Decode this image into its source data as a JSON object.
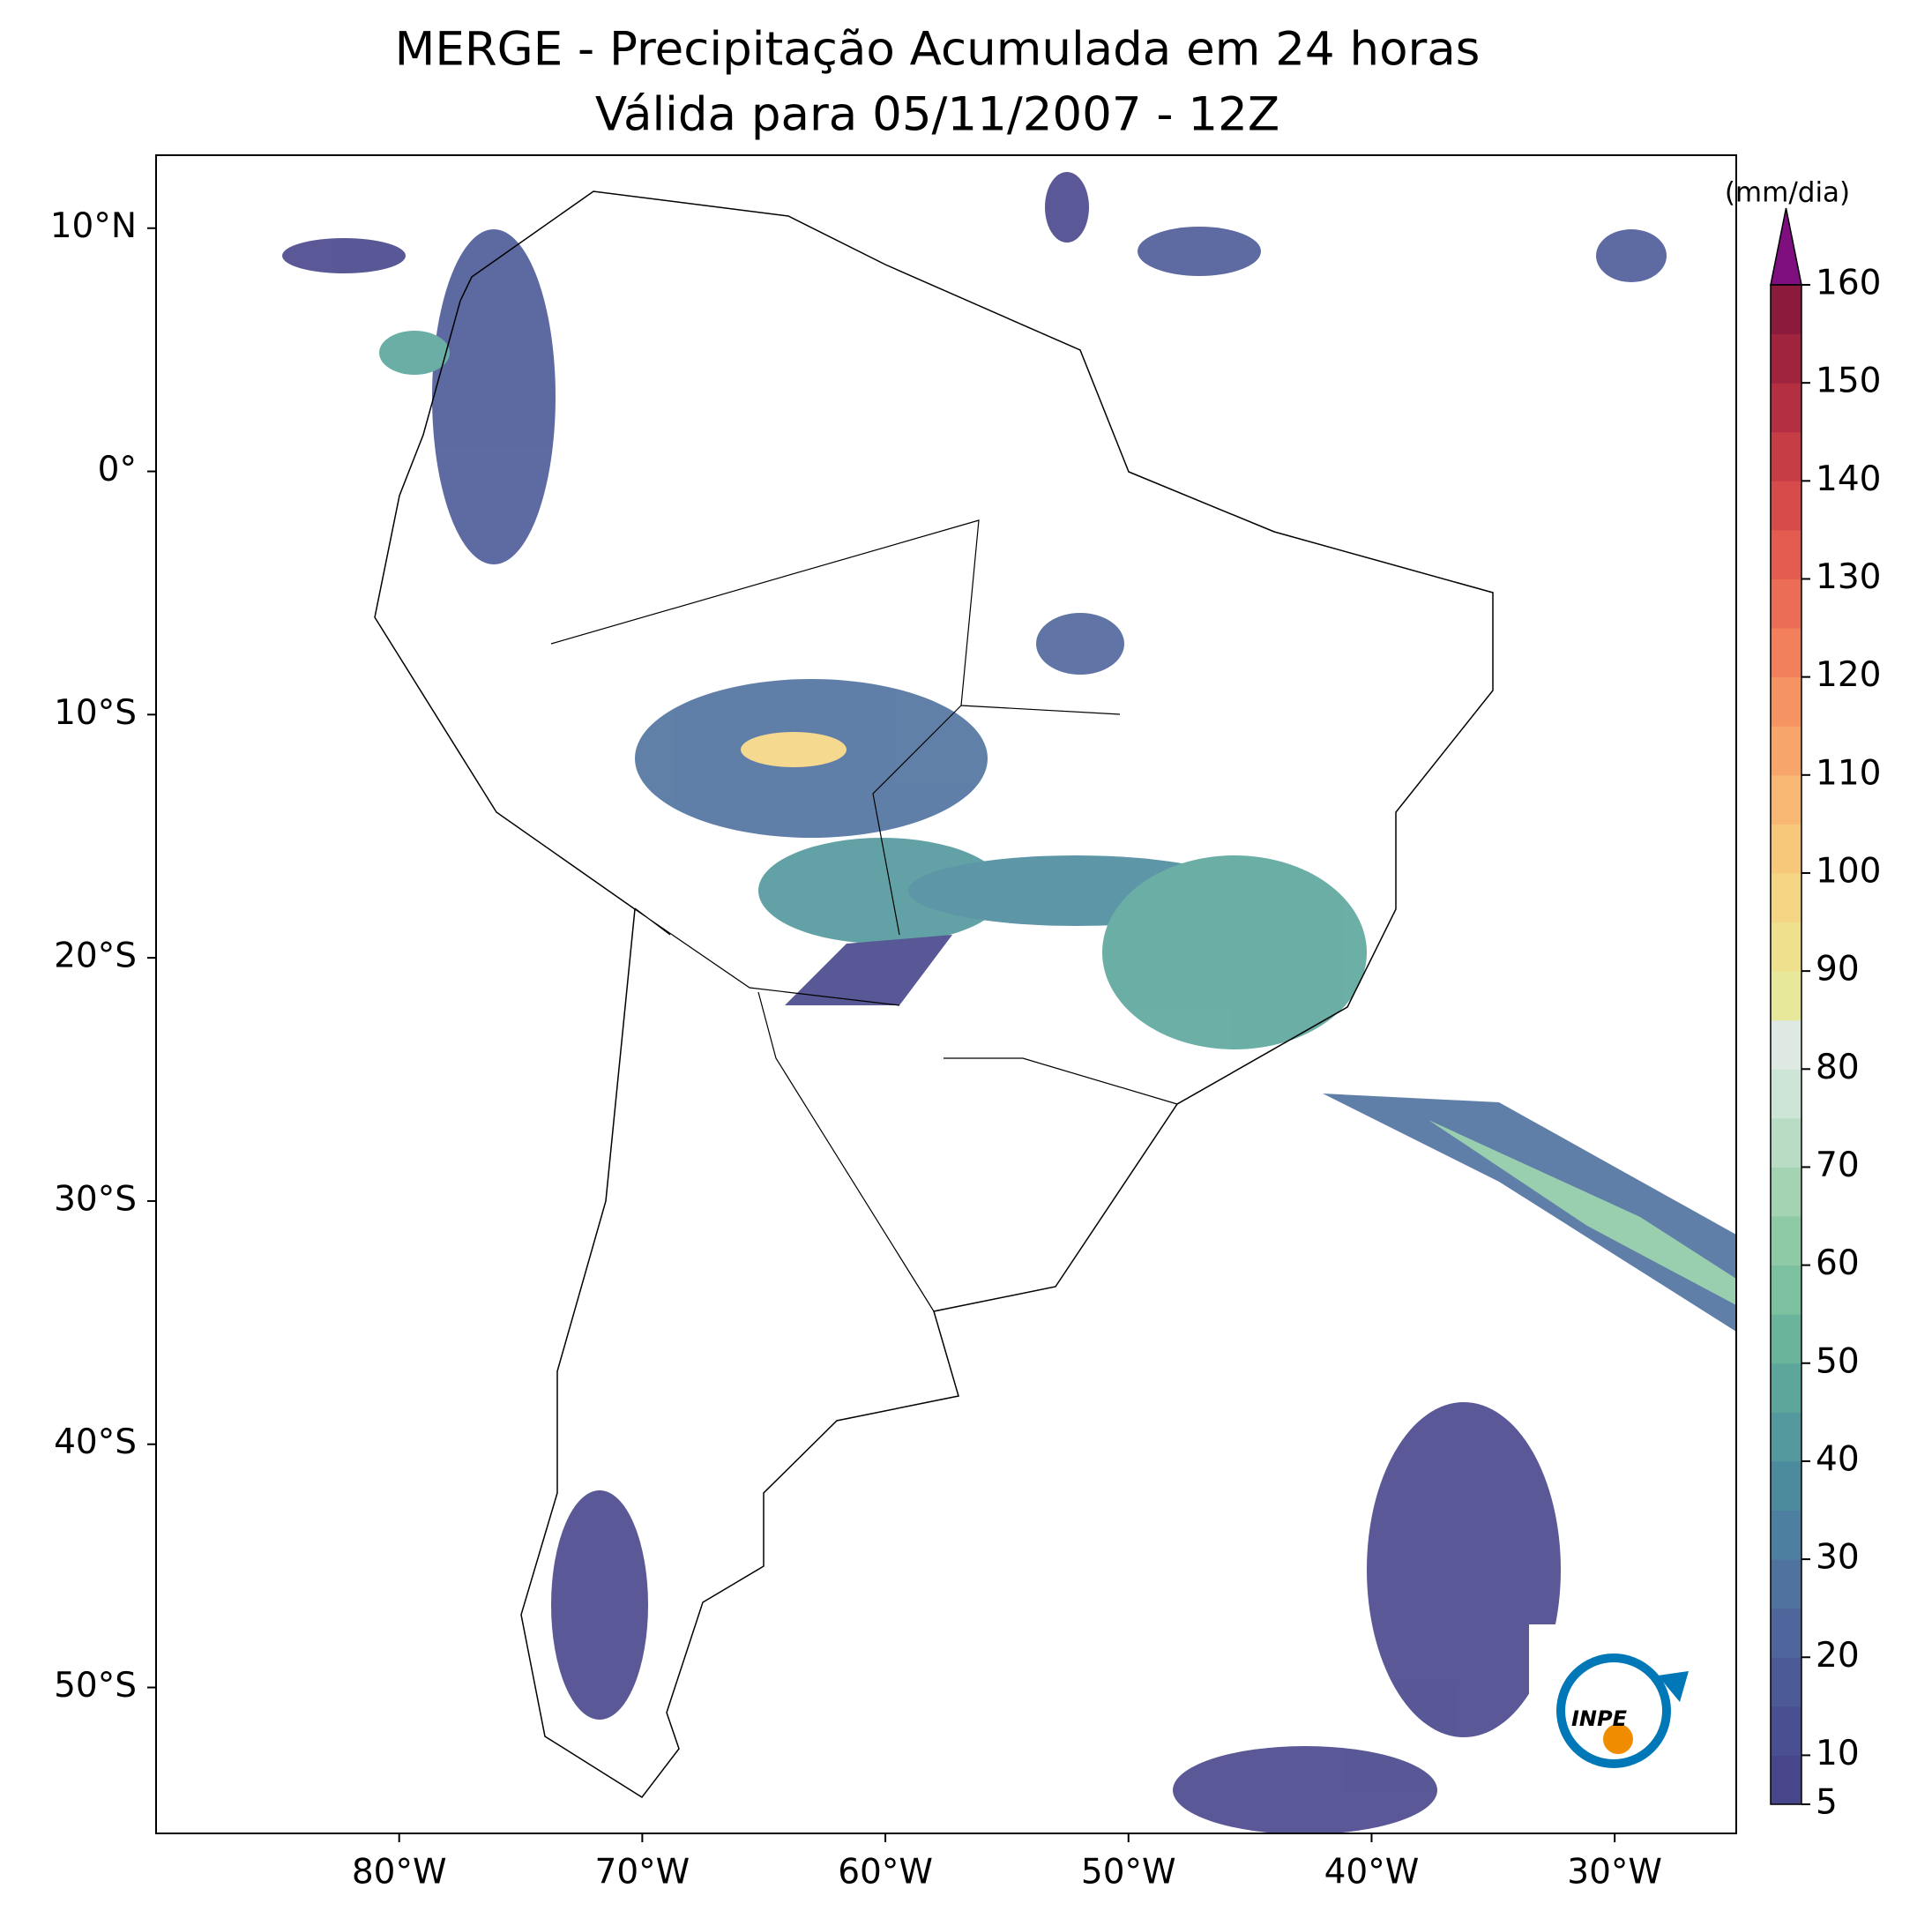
{
  "chart_data": {
    "type": "map",
    "title": "MERGE - Precipitação Acumulada em 24 horas",
    "subtitle": "Válida para 05/11/2007 - 12Z",
    "xlim": [
      -90,
      -25
    ],
    "ylim": [
      -56,
      13
    ],
    "xticks": [
      {
        "value": -80,
        "label": "80°W"
      },
      {
        "value": -70,
        "label": "70°W"
      },
      {
        "value": -60,
        "label": "60°W"
      },
      {
        "value": -50,
        "label": "50°W"
      },
      {
        "value": -40,
        "label": "40°W"
      },
      {
        "value": -30,
        "label": "30°W"
      }
    ],
    "yticks": [
      {
        "value": 10,
        "label": "10°N"
      },
      {
        "value": 0,
        "label": "0°"
      },
      {
        "value": -10,
        "label": "10°S"
      },
      {
        "value": -20,
        "label": "20°S"
      },
      {
        "value": -30,
        "label": "30°S"
      },
      {
        "value": -40,
        "label": "40°S"
      },
      {
        "value": -50,
        "label": "50°S"
      }
    ],
    "colorbar": {
      "label": "(mm/dia)",
      "lim": [
        5,
        160
      ],
      "ticks": [
        5,
        10,
        20,
        30,
        40,
        50,
        60,
        70,
        80,
        90,
        100,
        110,
        120,
        130,
        140,
        150,
        160
      ],
      "colors": [
        "#48468b",
        "#4a4f92",
        "#4c5a98",
        "#4f669c",
        "#4f729f",
        "#4d7fa0",
        "#4c8b9e",
        "#52989d",
        "#5ca69c",
        "#6ab49b",
        "#7bc09f",
        "#8ecaa6",
        "#a3d3b3",
        "#b8dcc4",
        "#cde5d6",
        "#dde9e2",
        "#e8e89a",
        "#eee08d",
        "#f4d583",
        "#f7c77a",
        "#f8b772",
        "#f7a56a",
        "#f59363",
        "#f2805c",
        "#ec6d55",
        "#e35c4f",
        "#d74c4a",
        "#c73d45",
        "#b52f42",
        "#a1243f",
        "#8b1a3d"
      ],
      "extend_color": "#7f0f7f"
    },
    "logo": "INPE"
  }
}
